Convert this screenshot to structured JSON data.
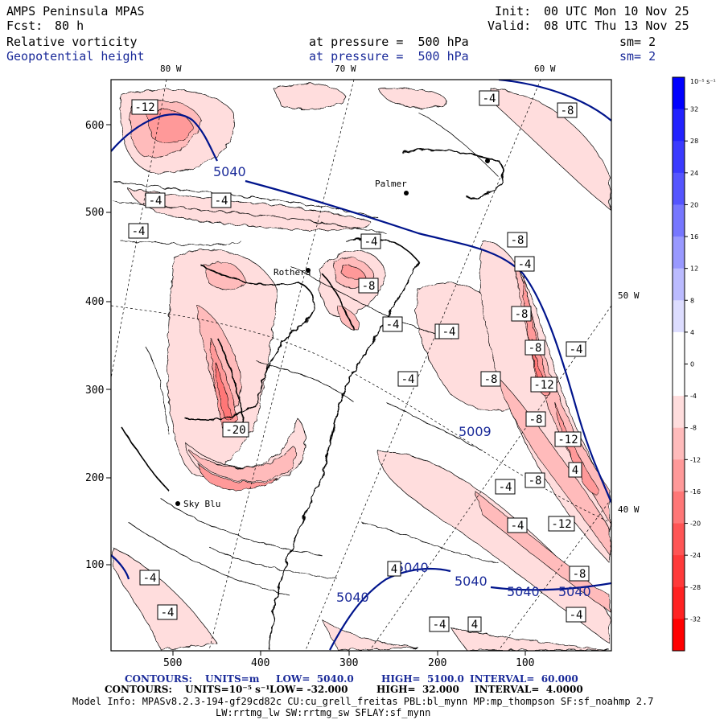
{
  "header": {
    "model": "AMPS Peninsula MPAS",
    "fcst_label": "Fcst:",
    "fcst_value": "80 h",
    "init_label": "Init:",
    "init_value": "00 UTC Mon 10 Nov 25",
    "valid_label": "Valid:",
    "valid_value": "08 UTC Thu 13 Nov 25",
    "field1": "Relative vorticity",
    "field2": "Geopotential height",
    "pressure1": "at pressure =  500 hPa",
    "pressure2": "at pressure =  500 hPa",
    "sm1": "sm= 2",
    "sm2": "sm= 2"
  },
  "axes": {
    "x_ticks": [
      "500",
      "400",
      "300",
      "200",
      "100"
    ],
    "y_ticks": [
      "600",
      "500",
      "400",
      "300",
      "200",
      "100"
    ],
    "lon_top": [
      "80 W",
      "70 W",
      "60 W"
    ],
    "lon_right": [
      "50 W",
      "40 W"
    ]
  },
  "colorbar": {
    "unit": "10⁻⁵ s⁻¹",
    "levels": [
      "32",
      "28",
      "24",
      "20",
      "16",
      "12",
      "8",
      "4",
      "0",
      "-4",
      "-8",
      "-12",
      "-16",
      "-20",
      "-24",
      "-28",
      "-32"
    ],
    "colors": [
      "#0000ff",
      "#2222ff",
      "#3a3aff",
      "#5555ff",
      "#7777ff",
      "#9999ff",
      "#bbbbff",
      "#ddddff",
      "#ffffff",
      "#ffffff",
      "#ffdddd",
      "#ffbbbb",
      "#ff9999",
      "#ff7777",
      "#ff5555",
      "#ff3a3a",
      "#ff2222",
      "#ff0000"
    ]
  },
  "map_labels": {
    "height_contours": [
      "5040",
      "5040",
      "5040",
      "5040",
      "5040",
      "5009",
      "5040"
    ],
    "vort_boxes": [
      "-12",
      "-4",
      "-4",
      "-4",
      "-4",
      "-8",
      "-4",
      "-8",
      "-4",
      "-8",
      "-4",
      "-4",
      "-8",
      "-8",
      "-4",
      "-12",
      "-4",
      "-8",
      "-20",
      "-12",
      "-8",
      "-4",
      "-8",
      "-4",
      "-12",
      "4",
      "-8",
      "-4",
      "-4",
      "-4",
      "4",
      "-4",
      "4",
      "-4"
    ],
    "places": [
      "Palmer",
      "Rothera",
      "Sky Blu"
    ]
  },
  "footer": {
    "line1_contours": "CONTOURS:",
    "line1_units": "UNITS=m",
    "line1_low": "LOW=  5040.0",
    "line1_high": "HIGH=  5100.0",
    "line1_interval": "INTERVAL=  60.000",
    "line2_contours": "CONTOURS:",
    "line2_units": "UNITS=10⁻⁵ s⁻¹",
    "line2_low": "LOW= -32.000",
    "line2_high": "HIGH=  32.000",
    "line2_interval": "INTERVAL=  4.0000",
    "model_info": "Model Info: MPASv8.2.3-194-gf29cd82c CU:cu_grell_freitas PBL:bl_mynn MP:mp_thompson SF:sf_noahmp 2.7",
    "model_info2": "LW:rrtmg_lw SW:rrtmg_sw SFLAY:sf_mynn"
  }
}
